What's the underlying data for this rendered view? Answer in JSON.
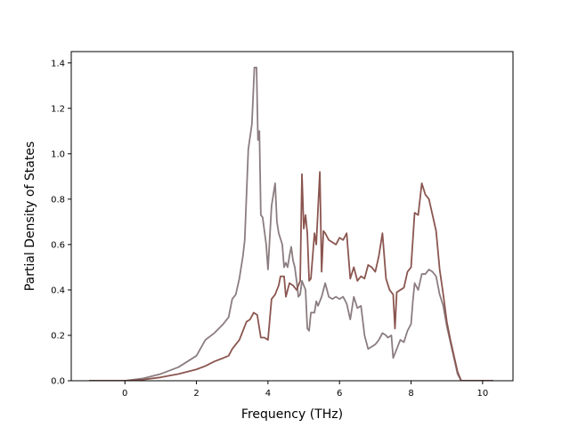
{
  "chart_data": {
    "type": "line",
    "title": "",
    "xlabel": "Frequency (THz)",
    "ylabel": "Partial Density of States",
    "xlim": [
      -1.5,
      10.85
    ],
    "ylim": [
      0,
      1.45
    ],
    "xticks": [
      0,
      2,
      4,
      6,
      8,
      10
    ],
    "yticks": [
      0.0,
      0.2,
      0.4,
      0.6,
      0.8,
      1.0,
      1.2,
      1.4
    ],
    "xtick_labels": [
      "0",
      "2",
      "4",
      "6",
      "8",
      "10"
    ],
    "ytick_labels": [
      "0.0",
      "0.2",
      "0.4",
      "0.6",
      "0.8",
      "1.0",
      "1.2",
      "1.4"
    ],
    "grid": false,
    "legend": "none",
    "series": [
      {
        "color": "#8b7d80",
        "points": [
          [
            -1.0,
            0.0
          ],
          [
            0.0,
            0.0
          ],
          [
            0.5,
            0.01
          ],
          [
            1.0,
            0.03
          ],
          [
            1.5,
            0.06
          ],
          [
            2.0,
            0.11
          ],
          [
            2.25,
            0.18
          ],
          [
            2.5,
            0.21
          ],
          [
            2.75,
            0.25
          ],
          [
            2.9,
            0.28
          ],
          [
            3.0,
            0.36
          ],
          [
            3.1,
            0.38
          ],
          [
            3.2,
            0.45
          ],
          [
            3.3,
            0.55
          ],
          [
            3.35,
            0.62
          ],
          [
            3.45,
            1.02
          ],
          [
            3.55,
            1.13
          ],
          [
            3.62,
            1.38
          ],
          [
            3.68,
            1.38
          ],
          [
            3.72,
            1.06
          ],
          [
            3.76,
            1.1
          ],
          [
            3.8,
            0.73
          ],
          [
            3.85,
            0.72
          ],
          [
            3.95,
            0.6
          ],
          [
            4.0,
            0.49
          ],
          [
            4.1,
            0.77
          ],
          [
            4.2,
            0.87
          ],
          [
            4.25,
            0.7
          ],
          [
            4.3,
            0.65
          ],
          [
            4.4,
            0.6
          ],
          [
            4.45,
            0.5
          ],
          [
            4.5,
            0.52
          ],
          [
            4.55,
            0.5
          ],
          [
            4.6,
            0.55
          ],
          [
            4.65,
            0.59
          ],
          [
            4.7,
            0.53
          ],
          [
            4.75,
            0.5
          ],
          [
            4.8,
            0.44
          ],
          [
            4.85,
            0.37
          ],
          [
            4.9,
            0.38
          ],
          [
            4.95,
            0.44
          ],
          [
            5.0,
            0.42
          ],
          [
            5.05,
            0.4
          ],
          [
            5.1,
            0.23
          ],
          [
            5.15,
            0.22
          ],
          [
            5.2,
            0.3
          ],
          [
            5.3,
            0.3
          ],
          [
            5.35,
            0.35
          ],
          [
            5.4,
            0.33
          ],
          [
            5.5,
            0.37
          ],
          [
            5.6,
            0.43
          ],
          [
            5.7,
            0.37
          ],
          [
            5.8,
            0.36
          ],
          [
            5.9,
            0.37
          ],
          [
            6.0,
            0.36
          ],
          [
            6.1,
            0.37
          ],
          [
            6.2,
            0.34
          ],
          [
            6.3,
            0.27
          ],
          [
            6.4,
            0.37
          ],
          [
            6.5,
            0.32
          ],
          [
            6.6,
            0.33
          ],
          [
            6.7,
            0.2
          ],
          [
            6.8,
            0.14
          ],
          [
            6.9,
            0.15
          ],
          [
            7.0,
            0.16
          ],
          [
            7.1,
            0.18
          ],
          [
            7.2,
            0.21
          ],
          [
            7.3,
            0.2
          ],
          [
            7.35,
            0.19
          ],
          [
            7.45,
            0.2
          ],
          [
            7.5,
            0.1
          ],
          [
            7.6,
            0.14
          ],
          [
            7.7,
            0.18
          ],
          [
            7.8,
            0.17
          ],
          [
            7.9,
            0.22
          ],
          [
            8.0,
            0.25
          ],
          [
            8.05,
            0.35
          ],
          [
            8.1,
            0.43
          ],
          [
            8.2,
            0.4
          ],
          [
            8.3,
            0.47
          ],
          [
            8.4,
            0.47
          ],
          [
            8.5,
            0.49
          ],
          [
            8.6,
            0.48
          ],
          [
            8.7,
            0.46
          ],
          [
            8.8,
            0.38
          ],
          [
            8.9,
            0.33
          ],
          [
            9.0,
            0.24
          ],
          [
            9.1,
            0.17
          ],
          [
            9.2,
            0.1
          ],
          [
            9.3,
            0.03
          ],
          [
            9.4,
            0.0
          ],
          [
            10.3,
            0.0
          ]
        ]
      },
      {
        "color": "#8b5650",
        "points": [
          [
            -1.0,
            0.0
          ],
          [
            0.0,
            0.0
          ],
          [
            0.5,
            0.005
          ],
          [
            1.0,
            0.015
          ],
          [
            1.5,
            0.03
          ],
          [
            2.0,
            0.05
          ],
          [
            2.25,
            0.065
          ],
          [
            2.5,
            0.085
          ],
          [
            2.75,
            0.1
          ],
          [
            2.9,
            0.11
          ],
          [
            3.0,
            0.14
          ],
          [
            3.2,
            0.18
          ],
          [
            3.3,
            0.22
          ],
          [
            3.4,
            0.26
          ],
          [
            3.5,
            0.27
          ],
          [
            3.6,
            0.3
          ],
          [
            3.7,
            0.29
          ],
          [
            3.8,
            0.19
          ],
          [
            3.9,
            0.19
          ],
          [
            4.0,
            0.18
          ],
          [
            4.1,
            0.36
          ],
          [
            4.2,
            0.38
          ],
          [
            4.3,
            0.42
          ],
          [
            4.35,
            0.46
          ],
          [
            4.45,
            0.46
          ],
          [
            4.5,
            0.37
          ],
          [
            4.6,
            0.43
          ],
          [
            4.7,
            0.42
          ],
          [
            4.8,
            0.4
          ],
          [
            4.9,
            0.44
          ],
          [
            4.95,
            0.91
          ],
          [
            5.0,
            0.67
          ],
          [
            5.05,
            0.73
          ],
          [
            5.1,
            0.65
          ],
          [
            5.15,
            0.44
          ],
          [
            5.2,
            0.45
          ],
          [
            5.3,
            0.65
          ],
          [
            5.35,
            0.6
          ],
          [
            5.45,
            0.92
          ],
          [
            5.5,
            0.48
          ],
          [
            5.55,
            0.66
          ],
          [
            5.6,
            0.65
          ],
          [
            5.7,
            0.62
          ],
          [
            5.8,
            0.61
          ],
          [
            5.9,
            0.6
          ],
          [
            6.0,
            0.63
          ],
          [
            6.1,
            0.62
          ],
          [
            6.2,
            0.65
          ],
          [
            6.3,
            0.45
          ],
          [
            6.4,
            0.5
          ],
          [
            6.5,
            0.44
          ],
          [
            6.6,
            0.46
          ],
          [
            6.7,
            0.45
          ],
          [
            6.8,
            0.51
          ],
          [
            6.9,
            0.5
          ],
          [
            7.0,
            0.48
          ],
          [
            7.1,
            0.55
          ],
          [
            7.2,
            0.65
          ],
          [
            7.3,
            0.45
          ],
          [
            7.4,
            0.4
          ],
          [
            7.5,
            0.38
          ],
          [
            7.55,
            0.23
          ],
          [
            7.6,
            0.39
          ],
          [
            7.7,
            0.4
          ],
          [
            7.8,
            0.41
          ],
          [
            7.9,
            0.48
          ],
          [
            8.0,
            0.5
          ],
          [
            8.1,
            0.74
          ],
          [
            8.2,
            0.73
          ],
          [
            8.3,
            0.87
          ],
          [
            8.4,
            0.82
          ],
          [
            8.5,
            0.8
          ],
          [
            8.6,
            0.73
          ],
          [
            8.7,
            0.66
          ],
          [
            8.8,
            0.49
          ],
          [
            8.9,
            0.38
          ],
          [
            9.0,
            0.26
          ],
          [
            9.1,
            0.18
          ],
          [
            9.2,
            0.11
          ],
          [
            9.3,
            0.04
          ],
          [
            9.4,
            0.0
          ],
          [
            10.3,
            0.0
          ]
        ]
      }
    ]
  }
}
